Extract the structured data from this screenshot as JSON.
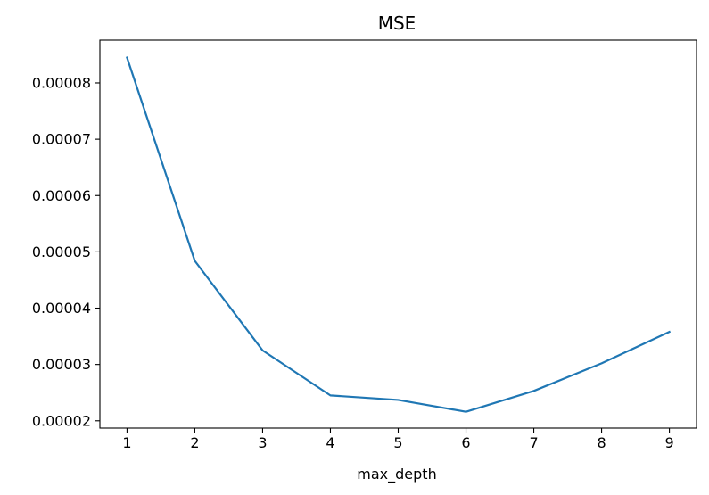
{
  "chart_data": {
    "type": "line",
    "title": "MSE",
    "xlabel": "max_depth",
    "ylabel": "",
    "x": [
      1,
      2,
      3,
      4,
      5,
      6,
      7,
      8,
      9
    ],
    "series": [
      {
        "color": "#1f77b4",
        "values": [
          8.45e-05,
          4.84e-05,
          3.25e-05,
          2.45e-05,
          2.37e-05,
          2.16e-05,
          2.53e-05,
          3.02e-05,
          3.58e-05
        ]
      }
    ],
    "xlim": [
      0.6,
      9.4
    ],
    "ylim": [
      1.87e-05,
      8.76e-05
    ],
    "xticks": [
      1,
      2,
      3,
      4,
      5,
      6,
      7,
      8,
      9
    ],
    "xtick_labels": [
      "1",
      "2",
      "3",
      "4",
      "5",
      "6",
      "7",
      "8",
      "9"
    ],
    "yticks": [
      2e-05,
      3e-05,
      4e-05,
      5e-05,
      6e-05,
      7e-05,
      8e-05
    ],
    "ytick_labels": [
      "0.00002",
      "0.00003",
      "0.00004",
      "0.00005",
      "0.00006",
      "0.00007",
      "0.00008"
    ],
    "grid": false,
    "legend": "none"
  }
}
